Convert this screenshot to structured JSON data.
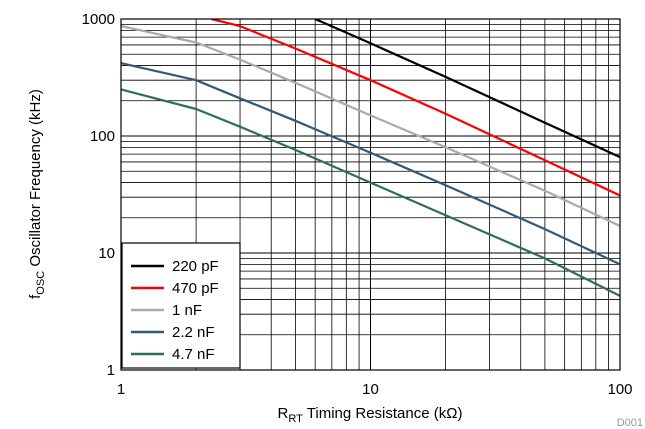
{
  "chart_data": {
    "type": "line",
    "xscale": "log",
    "yscale": "log",
    "xlim": [
      1,
      100
    ],
    "ylim": [
      1,
      1000
    ],
    "grid": true,
    "legend_placement": "bottom-left",
    "xlabel": {
      "main": "R",
      "sub": "RT",
      "rest": " Timing Resistance (kΩ)"
    },
    "ylabel": {
      "main": "f",
      "sub": "OSC",
      "rest": " Oscillator Frequency (kHz)"
    },
    "x_ticks": [
      {
        "value": 1,
        "label": "1"
      },
      {
        "value": 10,
        "label": "10"
      },
      {
        "value": 100,
        "label": "100"
      }
    ],
    "y_ticks": [
      {
        "value": 1,
        "label": "1"
      },
      {
        "value": 10,
        "label": "10"
      },
      {
        "value": 100,
        "label": "100"
      },
      {
        "value": 1000,
        "label": "1000"
      }
    ],
    "series": [
      {
        "name": "220 pF",
        "color": "#000000",
        "x": [
          6,
          10,
          20,
          50,
          100
        ],
        "y": [
          1000,
          620,
          320,
          130,
          66
        ]
      },
      {
        "name": "470 pF",
        "color": "#ff0000",
        "x": [
          2.3,
          3,
          5,
          10,
          20,
          50,
          100
        ],
        "y": [
          1000,
          870,
          560,
          300,
          155,
          62,
          31
        ]
      },
      {
        "name": "1 nF",
        "color": "#aaaaaa",
        "x": [
          1,
          2,
          3,
          5,
          10,
          20,
          50,
          100
        ],
        "y": [
          870,
          630,
          450,
          285,
          150,
          80,
          34,
          17
        ]
      },
      {
        "name": "2.2 nF",
        "color": "#2e5a7e",
        "x": [
          1,
          2,
          3,
          5,
          10,
          20,
          50,
          100
        ],
        "y": [
          420,
          300,
          210,
          135,
          72,
          38,
          16,
          8
        ]
      },
      {
        "name": "4.7 nF",
        "color": "#2e7050",
        "x": [
          1,
          2,
          3,
          5,
          10,
          20,
          50,
          100
        ],
        "y": [
          250,
          170,
          120,
          76,
          40,
          21,
          9,
          4.3
        ]
      }
    ]
  },
  "doc_code": "D001"
}
